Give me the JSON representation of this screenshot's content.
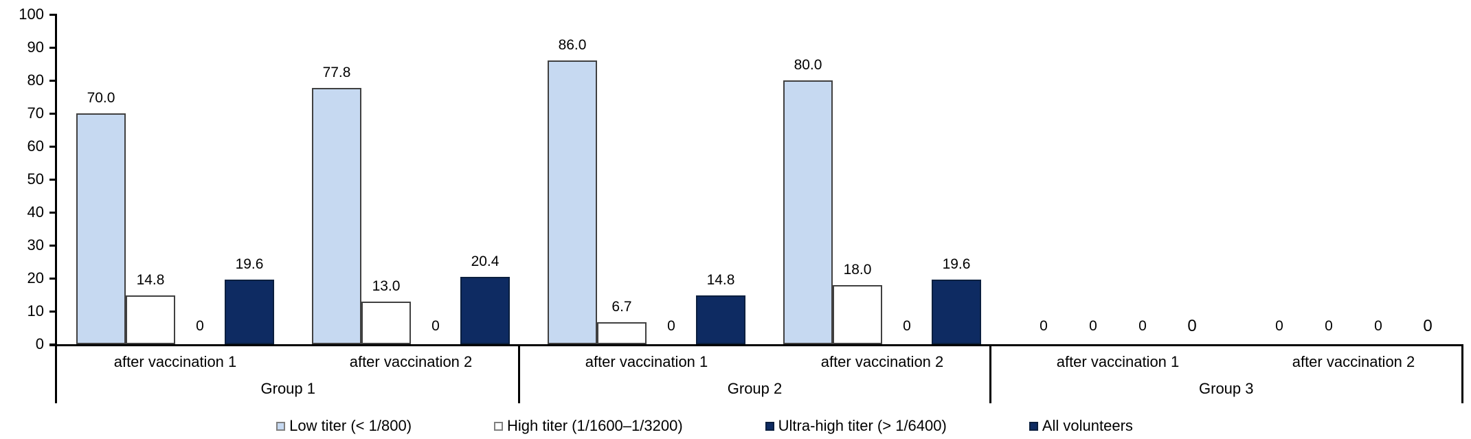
{
  "chart_data": {
    "type": "bar",
    "title": "",
    "xlabel": "",
    "ylabel": "",
    "ylim": [
      0,
      100
    ],
    "yticks": [
      0,
      10,
      20,
      30,
      40,
      50,
      60,
      70,
      80,
      90,
      100
    ],
    "grid": false,
    "legend_position": "bottom",
    "colors": {
      "low_titer_fill": "#C6D9F1",
      "high_titer_fill": "#FFFFFF",
      "navy_fill": "#0E2B62",
      "bar_border_light": "#404040",
      "bar_border_navy": "#0A1F3F",
      "swatch_border_gray": "#7F7F7F",
      "axis_color": "#000000"
    },
    "series": [
      {
        "name": "Low titer (< 1/800)",
        "fill": "#C6D9F1",
        "border": "#404040",
        "swatch_border": "#7F7F7F"
      },
      {
        "name": "High titer (1/1600–1/3200)",
        "fill": "#FFFFFF",
        "border": "#404040",
        "swatch_border": "#7F7F7F"
      },
      {
        "name": "Ultra-high titer (> 1/6400)",
        "fill": "#0E2B62",
        "border": "#0A1F3F",
        "swatch_border": "#0A1F3F"
      },
      {
        "name": "All volunteers",
        "fill": "#0E2B62",
        "border": "#0A1F3F",
        "swatch_border": "#0A1F3F"
      }
    ],
    "groups": [
      {
        "label": "Group 1",
        "clusters": [
          {
            "label": "after vaccination 1",
            "values": [
              70.0,
              14.8,
              0,
              19.6
            ],
            "labels": [
              "70.0",
              "14.8",
              "0",
              "19.6"
            ]
          },
          {
            "label": "after vaccination 2",
            "values": [
              77.8,
              13.0,
              0,
              20.4
            ],
            "labels": [
              "77.8",
              "13.0",
              "0",
              "20.4"
            ]
          }
        ]
      },
      {
        "label": "Group 2",
        "clusters": [
          {
            "label": "after vaccination 1",
            "values": [
              86.0,
              6.7,
              0,
              14.8
            ],
            "labels": [
              "86.0",
              "6.7",
              "0",
              "14.8"
            ]
          },
          {
            "label": "after vaccination 2",
            "values": [
              80.0,
              18.0,
              0,
              19.6
            ],
            "labels": [
              "80.0",
              "18.0",
              "0",
              "19.6"
            ]
          }
        ]
      },
      {
        "label": "Group 3",
        "clusters": [
          {
            "label": "after vaccination 1",
            "values": [
              0,
              0,
              0,
              0
            ],
            "labels": [
              "0",
              "0",
              "0",
              "0"
            ]
          },
          {
            "label": "after vaccination 2",
            "values": [
              0,
              0,
              0,
              0
            ],
            "labels": [
              "0",
              "0",
              "0",
              "0"
            ]
          }
        ]
      }
    ]
  }
}
